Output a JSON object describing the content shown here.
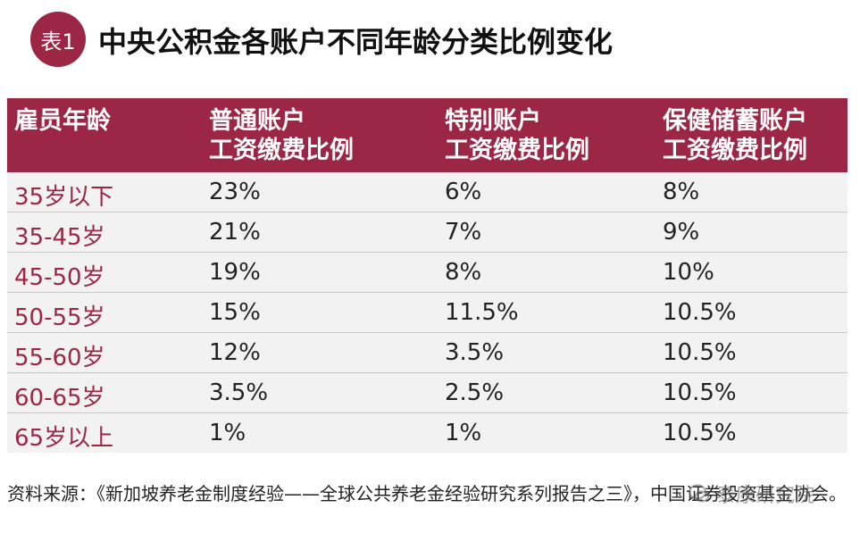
{
  "header": {
    "badge": "表1",
    "title": "中央公积金各账户不同年龄分类比例变化"
  },
  "table": {
    "columns": [
      [
        "雇员年龄"
      ],
      [
        "普通账户",
        "工资缴费比例"
      ],
      [
        "特别账户",
        "工资缴费比例"
      ],
      [
        "保健储蓄账户",
        "工资缴费比例"
      ]
    ],
    "rows": [
      [
        "35岁以下",
        "23%",
        "6%",
        "8%"
      ],
      [
        "35-45岁",
        "21%",
        "7%",
        "9%"
      ],
      [
        "45-50岁",
        "19%",
        "8%",
        "10%"
      ],
      [
        "50-55岁",
        "15%",
        "11.5%",
        "10.5%"
      ],
      [
        "55-60岁",
        "12%",
        "3.5%",
        "10.5%"
      ],
      [
        "60-65岁",
        "3.5%",
        "2.5%",
        "10.5%"
      ],
      [
        "65岁以上",
        "1%",
        "1%",
        "10.5%"
      ]
    ]
  },
  "source": "资料来源：《新加坡养老金制度经验——全球公共养老金经验研究系列报告之三》，中国证券投资基金协会。",
  "watermark": "泰康研究院",
  "colors": {
    "accent": "#9c2645",
    "row_bg": "#f2f2f2"
  }
}
